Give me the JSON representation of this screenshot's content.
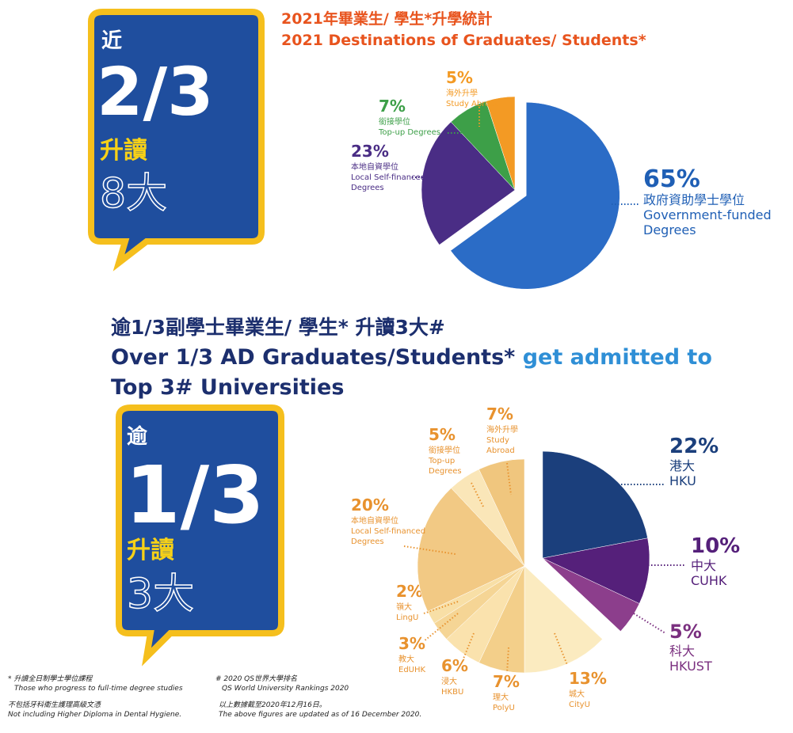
{
  "chart_data": [
    {
      "type": "pie",
      "title": "2021年畢業生/ 學生*升學統計",
      "subtitle": "2021 Destinations of Graduates/ Students*",
      "series": [
        {
          "values": [
            65,
            23,
            7,
            5
          ],
          "value_labels": [
            "65%",
            "23%",
            "7%",
            "5%"
          ],
          "labels_zh": [
            "政府資助學士學位",
            "本地自資學位",
            "銜接學位",
            "海外升學"
          ],
          "labels_en": [
            [
              "Government-funded",
              "Degrees"
            ],
            [
              "Local Self-financed",
              "Degrees"
            ],
            [
              "Top-up Degrees"
            ],
            [
              "Study Abroad"
            ]
          ],
          "colors": [
            "#2b6cc6",
            "#4a2d85",
            "#3d9f48",
            "#f39a24"
          ],
          "label_colors": [
            "#1f5fb5",
            "#4a2d85",
            "#3d9f48",
            "#f39a24"
          ],
          "exploded": [
            true,
            false,
            false,
            false
          ]
        }
      ]
    },
    {
      "type": "pie",
      "title": "逾1/3副學士畢業生/ 學生* 升讀3大#",
      "subtitle": [
        "Over 1/3 AD Graduates/Students*",
        "get admitted to",
        "Top 3# Universities"
      ],
      "series": [
        {
          "values": [
            22,
            10,
            5,
            13,
            7,
            6,
            3,
            2,
            20,
            5,
            7
          ],
          "value_labels": [
            "22%",
            "10%",
            "5%",
            "13%",
            "7%",
            "6%",
            "3%",
            "2%",
            "20%",
            "5%",
            "7%"
          ],
          "labels_zh": [
            "港大",
            "中大",
            "科大",
            "城大",
            "理大",
            "浸大",
            "教大",
            "嶺大",
            "本地自資學位",
            "銜接學位",
            "海外升學"
          ],
          "labels_en": [
            [
              "HKU"
            ],
            [
              "CUHK"
            ],
            [
              "HKUST"
            ],
            [
              "CityU"
            ],
            [
              "PolyU"
            ],
            [
              "HKBU"
            ],
            [
              "EdUHK"
            ],
            [
              "LingU"
            ],
            [
              "Local Self-financed",
              "Degrees"
            ],
            [
              "Top-up",
              "Degrees"
            ],
            [
              "Study",
              "Abroad"
            ]
          ],
          "colors": [
            "#1b3f7c",
            "#55207a",
            "#8c3e8c",
            "#fbebc0",
            "#f3cf8a",
            "#fae2ad",
            "#f5d595",
            "#f8dfa6",
            "#f2c984",
            "#fae6b8",
            "#f0c67e"
          ],
          "label_colors": [
            "#1b3f7c",
            "#55207a",
            "#7a2f7f",
            "#e8922e",
            "#e8922e",
            "#e8922e",
            "#e8922e",
            "#e8922e",
            "#e8922e",
            "#e8922e",
            "#e8922e"
          ],
          "exploded": [
            true,
            true,
            true,
            false,
            false,
            false,
            false,
            false,
            false,
            false,
            false
          ]
        }
      ]
    }
  ],
  "bubbles": [
    {
      "top": "近",
      "big": "2/3",
      "verb": "升讀",
      "count": "8大"
    },
    {
      "top": "逾",
      "big": "1/3",
      "verb": "升讀",
      "count": "3大"
    }
  ],
  "footnotes": [
    [
      "* 升讀全日制學士學位課程",
      "Those who progress to full-time degree studies",
      "不包括牙科衛生護理高級文憑",
      "Not including Higher Diploma in Dental Hygiene."
    ],
    [
      "# 2020 QS世界大學排名",
      "QS World University Rankings 2020",
      "以上數據截至2020年12月16日。",
      "The above figures are updated as of 16 December 2020."
    ]
  ]
}
